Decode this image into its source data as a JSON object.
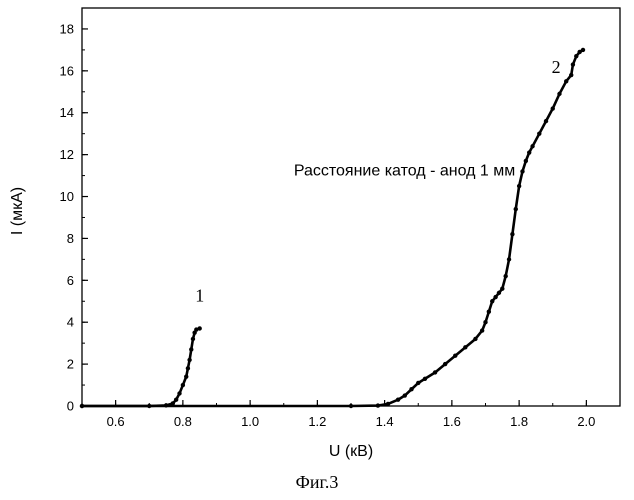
{
  "chart_data": {
    "type": "line",
    "title": "",
    "xlabel": "U (кВ)",
    "ylabel": "I (мкА)",
    "xlim": [
      0.5,
      2.1
    ],
    "ylim": [
      0,
      19
    ],
    "x_ticks": [
      0.6,
      0.8,
      1.0,
      1.2,
      1.4,
      1.6,
      1.8,
      2.0
    ],
    "x_tick_labels": [
      "0.6",
      "0.8",
      "1.0",
      "1.2",
      "1.4",
      "1.6",
      "1.8",
      "2.0"
    ],
    "y_ticks": [
      0,
      2,
      4,
      6,
      8,
      10,
      12,
      14,
      16,
      18
    ],
    "y_tick_labels": [
      "0",
      "2",
      "4",
      "6",
      "8",
      "10",
      "12",
      "14",
      "16",
      "18"
    ],
    "grid": false,
    "legend": "none",
    "annotations": [
      {
        "text": "Расстояние катод - анод 1 мм",
        "x": 1.13,
        "y": 11.0
      },
      {
        "text": "1",
        "x": 0.85,
        "y": 5.0
      },
      {
        "text": "2",
        "x": 1.91,
        "y": 15.9
      }
    ],
    "series": [
      {
        "label": "1",
        "x": [
          0.5,
          0.7,
          0.75,
          0.77,
          0.78,
          0.79,
          0.8,
          0.81,
          0.815,
          0.82,
          0.825,
          0.83,
          0.835,
          0.84,
          0.85
        ],
        "y": [
          0.0,
          0.0,
          0.03,
          0.12,
          0.3,
          0.6,
          1.0,
          1.4,
          1.8,
          2.2,
          2.7,
          3.2,
          3.5,
          3.65,
          3.7
        ]
      },
      {
        "label": "2",
        "x": [
          0.5,
          1.3,
          1.38,
          1.41,
          1.44,
          1.46,
          1.48,
          1.5,
          1.52,
          1.55,
          1.58,
          1.61,
          1.64,
          1.67,
          1.69,
          1.7,
          1.71,
          1.72,
          1.73,
          1.74,
          1.75,
          1.76,
          1.77,
          1.78,
          1.79,
          1.8,
          1.81,
          1.82,
          1.83,
          1.84,
          1.86,
          1.88,
          1.9,
          1.92,
          1.94,
          1.955,
          1.96,
          1.97,
          1.98,
          1.99
        ],
        "y": [
          0.0,
          0.0,
          0.02,
          0.1,
          0.3,
          0.5,
          0.8,
          1.1,
          1.3,
          1.6,
          2.0,
          2.4,
          2.8,
          3.2,
          3.6,
          4.0,
          4.5,
          5.0,
          5.2,
          5.4,
          5.6,
          6.2,
          7.0,
          8.2,
          9.4,
          10.5,
          11.2,
          11.7,
          12.1,
          12.4,
          13.0,
          13.6,
          14.2,
          14.9,
          15.5,
          15.8,
          16.3,
          16.7,
          16.9,
          17.0
        ]
      }
    ]
  },
  "caption": "Фиг.3",
  "colors": {
    "line": "#000000",
    "background": "#ffffff"
  }
}
